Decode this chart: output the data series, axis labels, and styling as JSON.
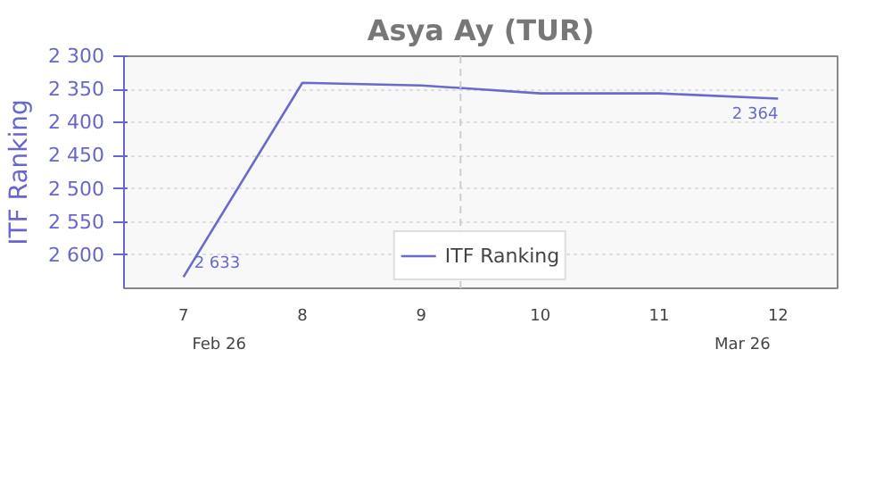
{
  "chart_data": {
    "type": "line",
    "title": "Asya Ay (TUR)",
    "ylabel": "ITF Ranking",
    "x": [
      7,
      8,
      9,
      10,
      11,
      12
    ],
    "xlim": [
      6.5,
      12.5
    ],
    "xticks": [
      7,
      8,
      9,
      10,
      11,
      12
    ],
    "ylim": [
      2650,
      2300
    ],
    "yticks": [
      {
        "value": 2300,
        "label": "2 300"
      },
      {
        "value": 2350,
        "label": "2 350"
      },
      {
        "value": 2400,
        "label": "2 400"
      },
      {
        "value": 2450,
        "label": "2 450"
      },
      {
        "value": 2500,
        "label": "2 500"
      },
      {
        "value": 2550,
        "label": "2 550"
      },
      {
        "value": 2600,
        "label": "2 600"
      }
    ],
    "series": [
      {
        "name": "ITF Ranking",
        "color": "#6a6acd",
        "values": [
          2633,
          2340,
          2344,
          2356,
          2356,
          2364
        ],
        "value_labels": [
          "2 633",
          null,
          null,
          null,
          null,
          "2 364"
        ]
      }
    ],
    "ref_lines": [
      {
        "axis": "x",
        "value": 9.33,
        "color": "#cccccc",
        "line_style": "dashed"
      }
    ],
    "annotations": [
      "Feb 26",
      "Mar 26"
    ],
    "grid": "y",
    "legend": "bottom",
    "marker": "none",
    "line_style": "solid"
  }
}
